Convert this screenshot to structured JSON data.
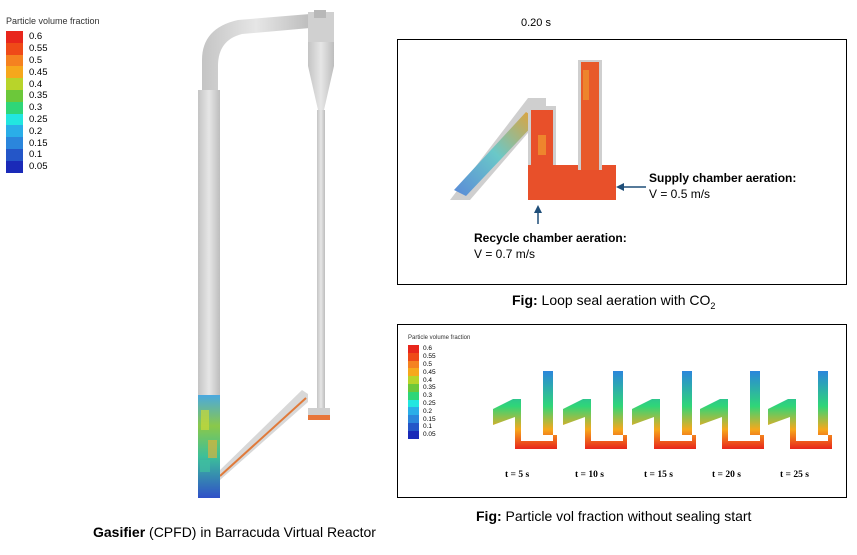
{
  "legend": {
    "title": "Particle volume fraction",
    "entries": [
      {
        "label": "0.6",
        "color": "#e8261c"
      },
      {
        "label": "0.55",
        "color": "#ef4a18"
      },
      {
        "label": "0.5",
        "color": "#f58220"
      },
      {
        "label": "0.45",
        "color": "#f6a81c"
      },
      {
        "label": "0.4",
        "color": "#b8d42a"
      },
      {
        "label": "0.35",
        "color": "#6cc83a"
      },
      {
        "label": "0.3",
        "color": "#2fd678"
      },
      {
        "label": "0.25",
        "color": "#22e6e0"
      },
      {
        "label": "0.2",
        "color": "#2aaee8"
      },
      {
        "label": "0.15",
        "color": "#2b86dc"
      },
      {
        "label": "0.1",
        "color": "#2456c8"
      },
      {
        "label": "0.05",
        "color": "#1a2ab8"
      }
    ]
  },
  "timestamp": "0.20 s",
  "annotations": {
    "supply_title": "Supply chamber aeration:",
    "supply_value": "V = 0.5 m/s",
    "recycle_title": "Recycle chamber aeration:",
    "recycle_value": "V = 0.7 m/s"
  },
  "captions": {
    "loop_seal_bold": "Fig:",
    "loop_seal_text": "Loop seal aeration with CO",
    "loop_seal_sub": "2",
    "particle_bold": "Fig:",
    "particle_text": "Particle vol fraction without sealing start",
    "gasifier_bold": "Gasifier",
    "gasifier_text": "(CPFD) in Barracuda Virtual Reactor"
  },
  "time_labels": [
    "t = 5 s",
    "t = 10 s",
    "t = 15 s",
    "t = 20 s",
    "t = 25 s"
  ]
}
